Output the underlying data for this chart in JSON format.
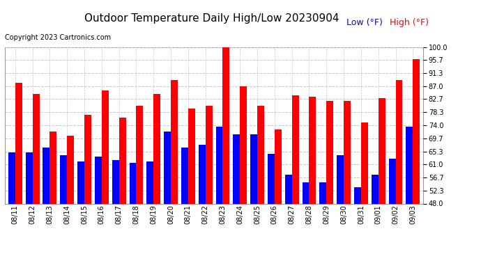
{
  "title": "Outdoor Temperature Daily High/Low 20230904",
  "copyright": "Copyright 2023 Cartronics.com",
  "legend_low": "Low",
  "legend_high": "High",
  "legend_unit": "(°F)",
  "dates": [
    "08/11",
    "08/12",
    "08/13",
    "08/14",
    "08/15",
    "08/16",
    "08/17",
    "08/18",
    "08/19",
    "08/20",
    "08/21",
    "08/22",
    "08/23",
    "08/24",
    "08/25",
    "08/26",
    "08/27",
    "08/28",
    "08/29",
    "08/30",
    "08/31",
    "09/01",
    "09/02",
    "09/03"
  ],
  "highs": [
    88.0,
    84.5,
    72.0,
    70.5,
    77.5,
    85.5,
    76.5,
    80.5,
    84.5,
    89.0,
    79.5,
    80.5,
    100.0,
    87.0,
    80.5,
    72.5,
    84.0,
    83.5,
    82.0,
    82.0,
    75.0,
    83.0,
    89.0,
    96.0
  ],
  "lows": [
    65.0,
    65.0,
    66.5,
    64.0,
    62.0,
    63.5,
    62.5,
    61.5,
    62.0,
    72.0,
    66.5,
    67.5,
    73.5,
    71.0,
    71.0,
    64.5,
    57.5,
    55.0,
    55.0,
    64.0,
    53.5,
    57.5,
    63.0,
    73.5
  ],
  "high_color": "#ff0000",
  "low_color": "#0000ff",
  "bg_color": "#ffffff",
  "grid_color": "#c8c8c8",
  "ylim_min": 48.0,
  "ylim_max": 100.0,
  "yticks": [
    48.0,
    52.3,
    56.7,
    61.0,
    65.3,
    69.7,
    74.0,
    78.3,
    82.7,
    87.0,
    91.3,
    95.7,
    100.0
  ],
  "title_fontsize": 11,
  "copyright_fontsize": 7,
  "legend_fontsize": 9,
  "tick_fontsize": 7,
  "bar_width": 0.4
}
